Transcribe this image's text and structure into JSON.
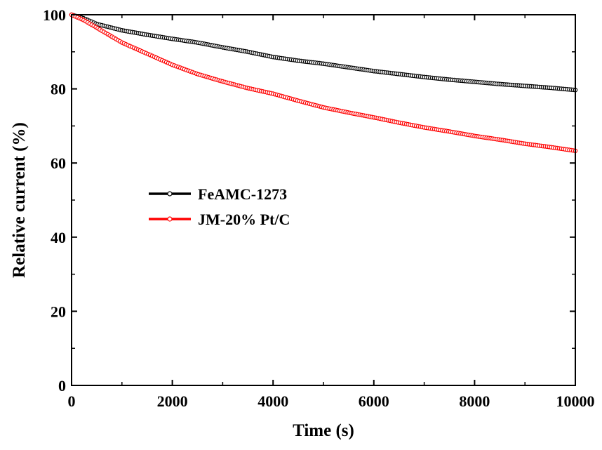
{
  "chart_data": {
    "type": "line",
    "title": "",
    "xlabel": "Time (s)",
    "ylabel": "Relative current (%)",
    "xlim": [
      0,
      10000
    ],
    "ylim": [
      0,
      100
    ],
    "x_ticks": [
      0,
      2000,
      4000,
      6000,
      8000,
      10000
    ],
    "y_ticks": [
      0,
      20,
      40,
      60,
      80,
      100
    ],
    "x_tick_labels": [
      "0",
      "2000",
      "4000",
      "6000",
      "8000",
      "10000"
    ],
    "y_tick_labels": [
      "0",
      "20",
      "40",
      "60",
      "80",
      "100"
    ],
    "grid": false,
    "legend_position": "center-left",
    "series": [
      {
        "name": "FeAMC-1273",
        "color": "#000000",
        "marker": "open-circle",
        "x": [
          0,
          250,
          500,
          1000,
          1500,
          2000,
          2500,
          3000,
          3500,
          4000,
          4500,
          5000,
          5500,
          6000,
          6500,
          7000,
          7500,
          8000,
          8500,
          9000,
          9500,
          10000
        ],
        "y": [
          100,
          99,
          97.5,
          95.8,
          94.6,
          93.5,
          92.5,
          91.2,
          90,
          88.6,
          87.6,
          86.8,
          85.8,
          84.8,
          84,
          83.2,
          82.5,
          81.9,
          81.3,
          80.8,
          80.3,
          79.7
        ]
      },
      {
        "name": "JM-20% Pt/C",
        "color": "#ff0000",
        "marker": "open-circle",
        "x": [
          0,
          250,
          500,
          1000,
          1500,
          2000,
          2500,
          3000,
          3500,
          4000,
          4500,
          5000,
          5500,
          6000,
          6500,
          7000,
          7500,
          8000,
          8500,
          9000,
          9500,
          10000
        ],
        "y": [
          100,
          98.5,
          96.5,
          92.5,
          89.5,
          86.5,
          84,
          82,
          80.2,
          78.7,
          76.8,
          75,
          73.6,
          72.3,
          70.9,
          69.6,
          68.5,
          67.3,
          66.3,
          65.2,
          64.3,
          63.3
        ]
      }
    ]
  }
}
